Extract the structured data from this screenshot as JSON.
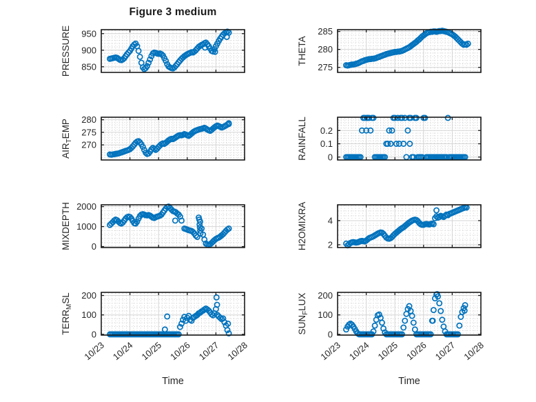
{
  "figure": {
    "title": "Figure 3 medium"
  },
  "colors": {
    "marker": "#0072BD",
    "axis": "#1a1a1a",
    "grid_major": "#d4d4d4",
    "grid_minor": "#c9c9c9",
    "text": "#262626"
  },
  "chart_data": {
    "type": "scatter",
    "marker": "open-circle",
    "grid": "major+minor",
    "x_axis": {
      "label": "Time",
      "lim": [
        0,
        5
      ],
      "tick_values": [
        0,
        1,
        2,
        3,
        4,
        5
      ],
      "tick_labels": [
        "10/23",
        "10/24",
        "10/25",
        "10/26",
        "10/27",
        "10/28"
      ],
      "minor_step": 0.125
    },
    "subplots": [
      {
        "name": "pressure",
        "row": 0,
        "col": 0,
        "ylabel_parts": [
          {
            "t": "PRESSURE"
          }
        ],
        "ylim": [
          833,
          962
        ],
        "ytick_values": [
          850,
          900,
          950
        ],
        "ytick_labels": [
          "850",
          "900",
          "950"
        ],
        "yminor_step": 10,
        "points": {
          "x0": 0.3,
          "dx": 0.05,
          "y": [
            874,
            875,
            876,
            877,
            878,
            877,
            874,
            871,
            870,
            872,
            876,
            882,
            888,
            893,
            898,
            905,
            912,
            917,
            920,
            912,
            898,
            880,
            862,
            848,
            843,
            846,
            852,
            862,
            872,
            882,
            890,
            893,
            892,
            890,
            889,
            890,
            888,
            884,
            876,
            868,
            858,
            851,
            848,
            846,
            845,
            848,
            853,
            858,
            864,
            869,
            874,
            878,
            882,
            885,
            888,
            890,
            892,
            894,
            893,
            896,
            900,
            905,
            910,
            913,
            916,
            918,
            921,
            923,
            918,
            912,
            905,
            898,
            896,
            903,
            912,
            920,
            928,
            935,
            941,
            947,
            951,
            954,
            956,
            953
          ]
        },
        "extra_points": [
          [
            3.62,
            908
          ],
          [
            3.97,
            895
          ],
          [
            4.38,
            940
          ]
        ]
      },
      {
        "name": "theta",
        "row": 0,
        "col": 1,
        "ylabel_parts": [
          {
            "t": "THETA"
          }
        ],
        "ylim": [
          273.6,
          285.5
        ],
        "ytick_values": [
          275,
          280,
          285
        ],
        "ytick_labels": [
          "275",
          "280",
          "285"
        ],
        "yminor_step": 1,
        "points": {
          "x0": 0.3,
          "dx": 0.05,
          "y": [
            275.6,
            275.5,
            275.6,
            275.7,
            275.8,
            275.8,
            275.9,
            276.0,
            276.1,
            276.3,
            276.5,
            276.7,
            276.8,
            277.0,
            277.1,
            277.2,
            277.3,
            277.3,
            277.4,
            277.4,
            277.5,
            277.6,
            277.8,
            277.9,
            278.1,
            278.2,
            278.4,
            278.5,
            278.7,
            278.8,
            278.9,
            279.0,
            279.1,
            279.2,
            279.3,
            279.3,
            279.4,
            279.4,
            279.5,
            279.6,
            279.8,
            280.0,
            280.2,
            280.4,
            280.6,
            280.9,
            281.2,
            281.5,
            281.8,
            282.1,
            282.5,
            282.8,
            283.2,
            283.6,
            283.9,
            284.2,
            284.5,
            284.7,
            284.8,
            284.9,
            284.9,
            285.0,
            285.0,
            284.9,
            285.0,
            285.1,
            285.1,
            285.2,
            285.1,
            285.0,
            284.9,
            284.8,
            284.6,
            284.4,
            284.2,
            283.9,
            283.6,
            283.2,
            282.8,
            282.4,
            282.0,
            281.6,
            281.3,
            281.4
          ]
        },
        "extra_points": [
          [
            4.5,
            281.3
          ],
          [
            4.55,
            281.6
          ]
        ]
      },
      {
        "name": "air_temp",
        "row": 1,
        "col": 0,
        "ylabel_parts": [
          {
            "t": "AIR"
          },
          {
            "t": "T",
            "sub": true
          },
          {
            "t": "EMP"
          }
        ],
        "ylim": [
          264.0,
          281.0
        ],
        "ytick_values": [
          270,
          275,
          280
        ],
        "ytick_labels": [
          "270",
          "275",
          "280"
        ],
        "yminor_step": 1,
        "points": {
          "x0": 0.3,
          "dx": 0.05,
          "y": [
            266.2,
            266.1,
            266.2,
            266.3,
            266.4,
            266.5,
            266.6,
            266.8,
            267.0,
            267.2,
            267.4,
            267.6,
            267.8,
            268.0,
            268.3,
            268.8,
            269.4,
            270.1,
            270.8,
            271.3,
            271.5,
            271.0,
            270.2,
            269.2,
            268.0,
            266.9,
            266.4,
            266.6,
            267.3,
            268.2,
            268.8,
            268.4,
            268.0,
            268.5,
            269.2,
            269.8,
            270.3,
            270.6,
            270.4,
            270.8,
            271.3,
            271.8,
            272.2,
            272.4,
            272.3,
            272.6,
            273.0,
            273.4,
            273.7,
            273.9,
            273.8,
            274.0,
            274.3,
            274.1,
            273.8,
            273.6,
            274.0,
            274.5,
            275.0,
            275.4,
            275.7,
            275.9,
            276.1,
            276.3,
            276.4,
            276.6,
            276.8,
            276.5,
            276.1,
            275.8,
            275.6,
            276.0,
            276.5,
            277.0,
            277.4,
            277.7,
            277.5,
            277.2,
            276.9,
            277.1,
            277.4,
            277.7,
            278.1,
            278.3
          ]
        },
        "extra_points": [
          [
            4.45,
            278.6
          ]
        ]
      },
      {
        "name": "rainfall",
        "row": 1,
        "col": 1,
        "ylabel_parts": [
          {
            "t": "RAINFALL"
          }
        ],
        "ylim": [
          -0.022,
          0.3
        ],
        "ytick_values": [
          0,
          0.1,
          0.2
        ],
        "ytick_labels": [
          "0",
          "0.1",
          "0.2"
        ],
        "yminor_step": 0.02,
        "points": {
          "x0": 0.3,
          "dx": 0.05,
          "y": [
            0,
            0,
            0,
            0,
            0,
            0,
            0,
            0,
            0,
            0,
            0,
            0.2,
            0.295,
            0.295,
            0.2,
            0.295,
            0.295,
            0.2,
            0.295,
            0.295,
            0,
            0,
            0,
            0,
            0,
            0,
            0,
            0,
            0.1,
            0.1,
            0.2,
            0.1,
            0.2,
            0.295,
            0.295,
            0.1,
            0.295,
            0.1,
            0.295,
            0.295,
            0.1,
            0.295,
            0,
            0.2,
            0.295,
            0.295,
            0,
            0,
            0.295,
            0.295,
            0,
            0,
            0,
            0,
            0.295,
            0.295,
            0,
            0,
            0,
            0,
            0,
            0,
            0,
            0,
            0,
            0,
            0,
            0,
            0,
            0,
            0,
            0.295,
            0,
            0,
            0,
            0,
            0,
            0,
            0,
            0,
            0,
            0,
            0,
            0
          ]
        },
        "extra_points": [
          [
            1.02,
            0.295
          ],
          [
            2.52,
            0.1
          ]
        ]
      },
      {
        "name": "mixdepth",
        "row": 2,
        "col": 0,
        "ylabel_parts": [
          {
            "t": "MIXDEPTH"
          }
        ],
        "ylim": [
          -50,
          2090
        ],
        "ytick_values": [
          0,
          1000,
          2000
        ],
        "ytick_labels": [
          "0",
          "1000",
          "2000"
        ],
        "yminor_step": 200,
        "points": {
          "x0": 0.3,
          "dx": 0.05,
          "y": [
            1080,
            1150,
            1220,
            1300,
            1350,
            1320,
            1250,
            1180,
            1150,
            1200,
            1300,
            1400,
            1470,
            1500,
            1480,
            1400,
            1280,
            1170,
            1150,
            1250,
            1400,
            1530,
            1600,
            1620,
            1600,
            1570,
            1560,
            1580,
            1550,
            1500,
            1450,
            1430,
            1470,
            1500,
            1520,
            1550,
            1600,
            1700,
            1800,
            1900,
            1980,
            2000,
            1930,
            1850,
            1780,
            1750,
            1720,
            1650,
            1600,
            1500,
            1300,
            null,
            900,
            880,
            850,
            820,
            800,
            780,
            730,
            650,
            550,
            480,
            1450,
            1250,
            900,
            600,
            350,
            150,
            100,
            80,
            120,
            180,
            250,
            320,
            380,
            420,
            450,
            500,
            560,
            620,
            700,
            780,
            850,
            900
          ]
        },
        "extra_points": [
          [
            3.42,
            1350
          ],
          [
            3.43,
            1100
          ],
          [
            3.44,
            950
          ],
          [
            3.45,
            800
          ],
          [
            3.46,
            660
          ],
          [
            2.58,
            1300
          ]
        ]
      },
      {
        "name": "h2omixra",
        "row": 2,
        "col": 1,
        "ylabel_parts": [
          {
            "t": "H2OMIXRA"
          }
        ],
        "ylim": [
          1.77,
          5.31
        ],
        "ytick_values": [
          2,
          4
        ],
        "ytick_labels": [
          "2",
          "4"
        ],
        "yminor_step": 0.4,
        "points": {
          "x0": 0.3,
          "dx": 0.05,
          "y": [
            2.1,
            1.95,
            2.05,
            2.15,
            2.2,
            2.22,
            2.2,
            2.18,
            2.2,
            2.25,
            2.3,
            2.32,
            2.3,
            2.28,
            2.35,
            2.45,
            2.55,
            2.6,
            2.65,
            2.7,
            2.78,
            2.85,
            2.92,
            2.98,
            3.02,
            3.0,
            2.9,
            2.75,
            2.6,
            2.52,
            2.5,
            2.55,
            2.65,
            2.78,
            2.9,
            3.0,
            3.1,
            3.2,
            3.3,
            3.38,
            3.45,
            3.55,
            3.65,
            3.75,
            3.85,
            3.92,
            4.0,
            4.05,
            4.08,
            4.05,
            3.95,
            3.8,
            3.7,
            3.65,
            3.65,
            3.7,
            3.72,
            3.7,
            3.68,
            3.72,
            3.75,
            3.7,
            4.2,
            4.35,
            4.25,
            4.3,
            4.4,
            4.35,
            4.3,
            4.4,
            4.5,
            4.45,
            4.55,
            4.6,
            4.65,
            4.7,
            4.75,
            4.8,
            4.85,
            4.9,
            4.95,
            5.0,
            5.05,
            5.1
          ]
        },
        "extra_points": [
          [
            3.45,
            4.85
          ],
          [
            4.5,
            5.08
          ]
        ]
      },
      {
        "name": "terr_msl",
        "row": 3,
        "col": 0,
        "ylabel_parts": [
          {
            "t": "TERR"
          },
          {
            "t": "M",
            "sub": true
          },
          {
            "t": "SL"
          }
        ],
        "ylim": [
          -4,
          216
        ],
        "ytick_values": [
          0,
          100,
          200
        ],
        "ytick_labels": [
          "0",
          "100",
          "200"
        ],
        "yminor_step": 20,
        "points": {
          "x0": 0.3,
          "dx": 0.05,
          "y": [
            0,
            0,
            0,
            0,
            0,
            0,
            0,
            0,
            0,
            0,
            0,
            0,
            0,
            0,
            0,
            0,
            0,
            0,
            0,
            0,
            0,
            0,
            0,
            0,
            0,
            0,
            0,
            0,
            0,
            0,
            0,
            0,
            0,
            0,
            0,
            0,
            0,
            0,
            0,
            0,
            0,
            0,
            0,
            0,
            0,
            0,
            0,
            0,
            0,
            38,
            55,
            75,
            90,
            70,
            85,
            95,
            75,
            70,
            85,
            90,
            95,
            100,
            108,
            112,
            118,
            122,
            128,
            133,
            128,
            122,
            113,
            103,
            98,
            108,
            130,
            100,
            92,
            85,
            78,
            82,
            62,
            45,
            22,
            5
          ]
        },
        "extra_points": [
          [
            2.22,
            25
          ],
          [
            2.3,
            92
          ],
          [
            4.02,
            190
          ],
          [
            4.04,
            152
          ],
          [
            4.42,
            55
          ]
        ]
      },
      {
        "name": "sun_flux",
        "row": 3,
        "col": 1,
        "ylabel_parts": [
          {
            "t": "SUN"
          },
          {
            "t": "F",
            "sub": true
          },
          {
            "t": "LUX"
          }
        ],
        "ylim": [
          -4,
          216
        ],
        "ytick_values": [
          0,
          100,
          200
        ],
        "ytick_labels": [
          "0",
          "100",
          "200"
        ],
        "yminor_step": 20,
        "points": {
          "x0": 0.3,
          "dx": 0.05,
          "y": [
            25,
            40,
            50,
            55,
            50,
            40,
            28,
            15,
            5,
            0,
            0,
            0,
            0,
            0,
            0,
            0,
            0,
            0,
            0,
            15,
            45,
            75,
            98,
            102,
            85,
            60,
            30,
            10,
            0,
            0,
            0,
            0,
            0,
            0,
            0,
            0,
            0,
            0,
            0,
            0,
            35,
            70,
            105,
            130,
            145,
            120,
            95,
            60,
            25,
            0,
            0,
            0,
            0,
            0,
            0,
            0,
            0,
            0,
            0,
            0,
            70,
            125,
            185,
            205,
            195,
            160,
            120,
            75,
            40,
            15,
            0,
            0,
            0,
            0,
            0,
            0,
            0,
            0,
            0,
            45,
            90,
            115,
            135,
            150
          ]
        },
        "extra_points": [
          [
            3.47,
            207
          ],
          [
            4.43,
            122
          ],
          [
            3.32,
            70
          ]
        ]
      }
    ]
  }
}
